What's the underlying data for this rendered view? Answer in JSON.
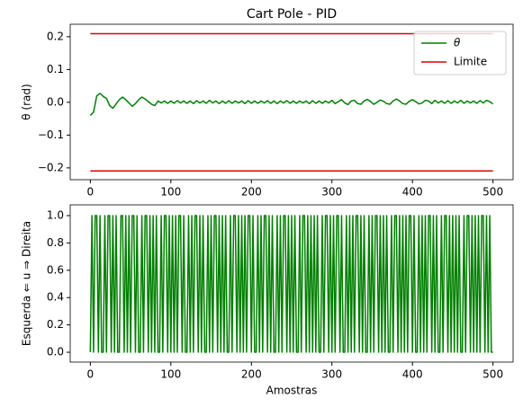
{
  "chart_data": [
    {
      "type": "line",
      "title": "Cart Pole - PID",
      "y_label": "θ (rad)",
      "xlim": [
        -25,
        525
      ],
      "xticks": [
        0,
        100,
        200,
        300,
        400,
        500
      ],
      "ylim": [
        -0.236,
        0.238
      ],
      "yticks": [
        {
          "value": -0.2,
          "label": "−0.2"
        },
        {
          "value": -0.1,
          "label": "−0.1"
        },
        {
          "value": 0,
          "label": "0.0"
        },
        0.1,
        0.2
      ],
      "legend": "upper right",
      "series": [
        {
          "name": "θ",
          "color": "#008000",
          "x": [
            0,
            4,
            8,
            12,
            16,
            20,
            24,
            28,
            32,
            36,
            40,
            44,
            48,
            52,
            56,
            60,
            64,
            68,
            72,
            76,
            80,
            84,
            88,
            92,
            96,
            100,
            104,
            108,
            112,
            116,
            120,
            124,
            128,
            132,
            136,
            140,
            144,
            148,
            152,
            156,
            160,
            164,
            168,
            172,
            176,
            180,
            184,
            188,
            192,
            196,
            200,
            204,
            208,
            212,
            216,
            220,
            224,
            228,
            232,
            236,
            240,
            244,
            248,
            252,
            256,
            260,
            264,
            268,
            272,
            276,
            280,
            284,
            288,
            292,
            296,
            300,
            304,
            308,
            312,
            316,
            320,
            324,
            328,
            332,
            336,
            340,
            344,
            348,
            352,
            356,
            360,
            364,
            368,
            372,
            376,
            380,
            384,
            388,
            392,
            396,
            400,
            404,
            408,
            412,
            416,
            420,
            424,
            428,
            432,
            436,
            440,
            444,
            448,
            452,
            456,
            460,
            464,
            468,
            472,
            476,
            480,
            484,
            488,
            492,
            496,
            500
          ],
          "values": [
            -0.04,
            -0.03,
            0.02,
            0.027,
            0.018,
            0.012,
            -0.01,
            -0.018,
            -0.005,
            0.008,
            0.016,
            0.008,
            -0.002,
            -0.012,
            -0.004,
            0.008,
            0.016,
            0.01,
            0.002,
            -0.006,
            -0.01,
            0.004,
            -0.002,
            0.004,
            -0.003,
            0.004,
            -0.003,
            0.005,
            -0.002,
            0.004,
            -0.003,
            0.004,
            -0.004,
            0.005,
            -0.002,
            0.004,
            -0.003,
            0.006,
            -0.002,
            0.004,
            -0.004,
            0.004,
            -0.003,
            0.005,
            -0.003,
            0.004,
            -0.002,
            0.004,
            -0.004,
            0.005,
            -0.003,
            0.004,
            -0.003,
            0.004,
            -0.002,
            0.005,
            -0.003,
            0.004,
            -0.004,
            0.004,
            -0.002,
            0.005,
            -0.003,
            0.004,
            -0.003,
            0.004,
            -0.002,
            0.004,
            -0.004,
            0.005,
            -0.003,
            0.004,
            -0.003,
            0.004,
            -0.002,
            0.006,
            -0.004,
            0.002,
            0.008,
            -0.002,
            -0.007,
            0.004,
            0.006,
            -0.004,
            -0.006,
            0.004,
            0.009,
            0.002,
            -0.006,
            0.0,
            0.007,
            0.003,
            -0.004,
            -0.006,
            0.004,
            0.01,
            0.004,
            -0.004,
            -0.006,
            0.003,
            0.008,
            0.002,
            -0.005,
            -0.002,
            0.006,
            0.004,
            -0.004,
            0.006,
            -0.002,
            0.004,
            -0.003,
            0.005,
            -0.003,
            0.004,
            -0.002,
            0.006,
            -0.003,
            0.004,
            -0.002,
            0.004,
            -0.003,
            0.005,
            -0.002,
            0.006,
            0.002,
            -0.005
          ]
        },
        {
          "name": "Limite",
          "color": "#e00000",
          "x": [
            0,
            500
          ],
          "values": [
            0.2094,
            -0.2094
          ]
        }
      ]
    },
    {
      "type": "line",
      "x_label": "Amostras",
      "y_label": "Esquerda ⇐ u ⇒ Direita",
      "xlim": [
        -25,
        525
      ],
      "xticks": [
        0,
        100,
        200,
        300,
        400,
        500
      ],
      "ylim": [
        -0.072,
        1.079
      ],
      "yticks": [
        {
          "value": 0,
          "label": "0.0"
        },
        0.2,
        0.4,
        0.6,
        0.8,
        {
          "value": 1,
          "label": "1.0"
        }
      ],
      "series": [
        {
          "name": "u",
          "color": "#008000",
          "x": [
            0,
            2,
            4,
            6,
            8,
            10,
            12,
            14,
            16,
            18,
            20,
            22,
            24,
            26,
            28,
            30,
            32,
            34,
            36,
            38,
            40,
            42,
            44,
            46,
            48,
            50,
            52,
            54,
            56,
            58,
            60,
            62,
            64,
            66,
            68,
            70,
            72,
            74,
            76,
            78,
            80,
            82,
            84,
            86,
            88,
            90,
            92,
            94,
            96,
            98,
            100,
            102,
            104,
            106,
            108,
            110,
            112,
            114,
            116,
            118,
            120,
            122,
            124,
            126,
            128,
            130,
            132,
            134,
            136,
            138,
            140,
            142,
            144,
            146,
            148,
            150,
            152,
            154,
            156,
            158,
            160,
            162,
            164,
            166,
            168,
            170,
            172,
            174,
            176,
            178,
            180,
            182,
            184,
            186,
            188,
            190,
            192,
            194,
            196,
            198,
            200,
            202,
            204,
            206,
            208,
            210,
            212,
            214,
            216,
            218,
            220,
            222,
            224,
            226,
            228,
            230,
            232,
            234,
            236,
            238,
            240,
            242,
            244,
            246,
            248,
            250,
            252,
            254,
            256,
            258,
            260,
            262,
            264,
            266,
            268,
            270,
            272,
            274,
            276,
            278,
            280,
            282,
            284,
            286,
            288,
            290,
            292,
            294,
            296,
            298,
            300,
            302,
            304,
            306,
            308,
            310,
            312,
            314,
            316,
            318,
            320,
            322,
            324,
            326,
            328,
            330,
            332,
            334,
            336,
            338,
            340,
            342,
            344,
            346,
            348,
            350,
            352,
            354,
            356,
            358,
            360,
            362,
            364,
            366,
            368,
            370,
            372,
            374,
            376,
            378,
            380,
            382,
            384,
            386,
            388,
            390,
            392,
            394,
            396,
            398,
            400,
            402,
            404,
            406,
            408,
            410,
            412,
            414,
            416,
            418,
            420,
            422,
            424,
            426,
            428,
            430,
            432,
            434,
            436,
            438,
            440,
            442,
            444,
            446,
            448,
            450,
            452,
            454,
            456,
            458,
            460,
            462,
            464,
            466,
            468,
            470,
            472,
            474,
            476,
            478,
            480,
            482,
            484,
            486,
            488,
            490,
            492,
            494,
            496,
            498,
            500
          ],
          "values": [
            0,
            1,
            0,
            1,
            1,
            0,
            1,
            0,
            0,
            1,
            0,
            1,
            1,
            0,
            1,
            0,
            1,
            0,
            0,
            1,
            1,
            0,
            1,
            0,
            1,
            0,
            1,
            1,
            0,
            1,
            0,
            0,
            1,
            0,
            1,
            1,
            0,
            1,
            0,
            1,
            0,
            1,
            0,
            0,
            1,
            0,
            1,
            1,
            0,
            1,
            0,
            1,
            0,
            1,
            0,
            1,
            1,
            0,
            1,
            0,
            0,
            1,
            0,
            1,
            0,
            1,
            1,
            0,
            1,
            0,
            1,
            0,
            0,
            1,
            0,
            1,
            0,
            1,
            1,
            0,
            1,
            0,
            1,
            0,
            1,
            0,
            0,
            1,
            0,
            1,
            1,
            0,
            1,
            0,
            1,
            0,
            1,
            0,
            1,
            1,
            0,
            1,
            0,
            0,
            1,
            0,
            1,
            0,
            1,
            1,
            0,
            1,
            0,
            1,
            0,
            0,
            1,
            0,
            1,
            0,
            1,
            1,
            0,
            1,
            0,
            1,
            0,
            1,
            0,
            0,
            1,
            0,
            1,
            1,
            0,
            1,
            0,
            1,
            0,
            1,
            0,
            1,
            0,
            0,
            1,
            0,
            1,
            1,
            0,
            1,
            0,
            1,
            0,
            1,
            1,
            0,
            1,
            0,
            0,
            1,
            0,
            1,
            0,
            1,
            0,
            1,
            1,
            0,
            1,
            0,
            1,
            0,
            0,
            1,
            0,
            1,
            0,
            1,
            1,
            0,
            1,
            0,
            1,
            0,
            1,
            0,
            0,
            1,
            0,
            1,
            1,
            0,
            1,
            0,
            1,
            0,
            1,
            0,
            1,
            1,
            0,
            1,
            0,
            0,
            1,
            0,
            1,
            0,
            1,
            0,
            1,
            1,
            0,
            1,
            0,
            1,
            0,
            0,
            1,
            0,
            1,
            1,
            0,
            1,
            0,
            1,
            0,
            1,
            0,
            1,
            0,
            0,
            1,
            0,
            1,
            1,
            0,
            1,
            0,
            1,
            0,
            1,
            0,
            1,
            1,
            0,
            1,
            0,
            1,
            0,
            0
          ]
        }
      ]
    }
  ]
}
